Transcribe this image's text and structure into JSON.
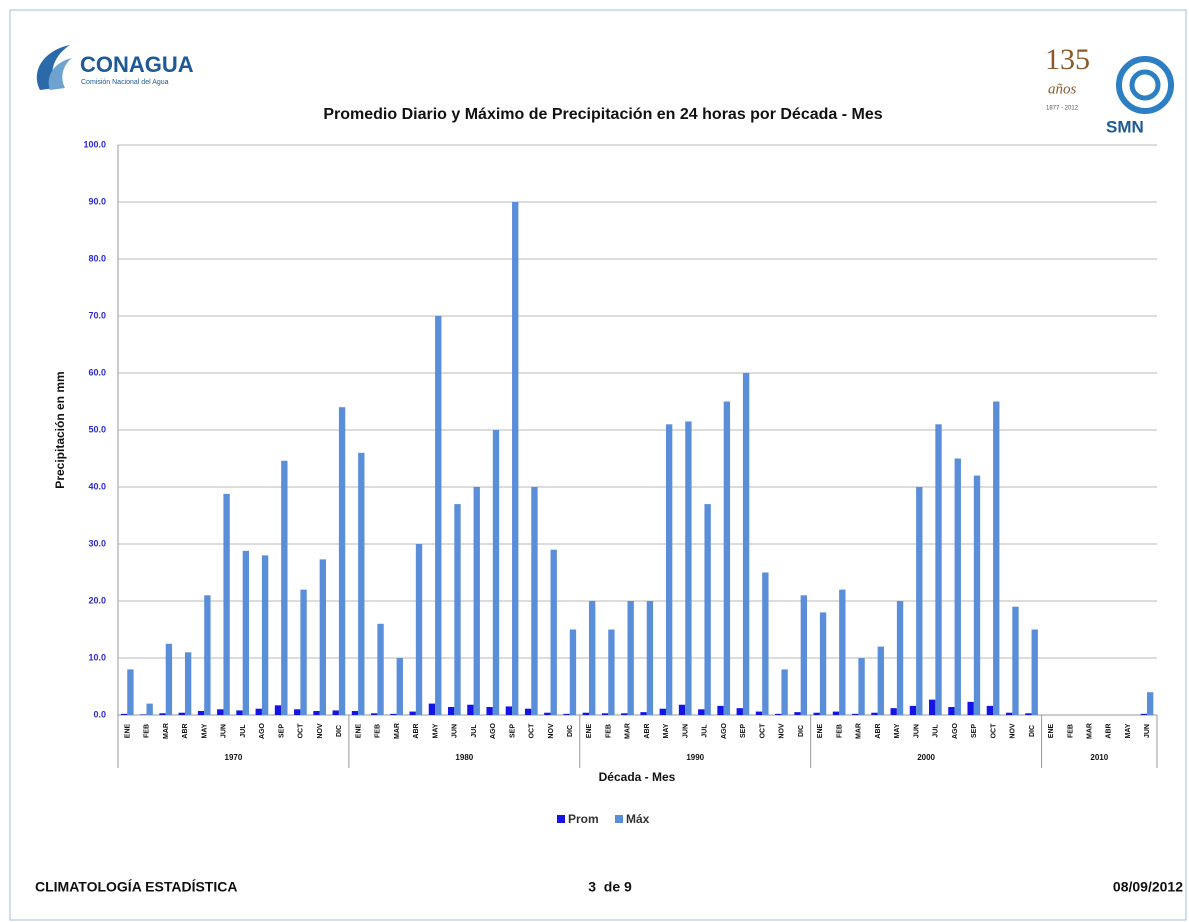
{
  "header": {
    "logo_left": {
      "name": "CONAGUA",
      "subtitle": "Comisión Nacional del Agua"
    },
    "logo_right": {
      "number": "135",
      "text": "años",
      "years": "1877 - 2012",
      "name": "SMN"
    }
  },
  "footer": {
    "left": "CLIMATOLOGÍA ESTADÍSTICA",
    "center": "3  de 9",
    "right": "08/09/2012"
  },
  "chart_data": {
    "type": "bar",
    "title": "Promedio Diario y Máximo de Precipitación en 24 horas por Década - Mes",
    "x_label": "Década - Mes",
    "y_label": "Precipitación en mm",
    "groups": [
      {
        "label": "1970",
        "categories": [
          "ENE",
          "FEB",
          "MAR",
          "ABR",
          "MAY",
          "JUN",
          "JUL",
          "AGO",
          "SEP",
          "OCT",
          "NOV",
          "DIC"
        ]
      },
      {
        "label": "1980",
        "categories": [
          "ENE",
          "FEB",
          "MAR",
          "ABR",
          "MAY",
          "JUN",
          "JUL",
          "AGO",
          "SEP",
          "OCT",
          "NOV",
          "DIC"
        ]
      },
      {
        "label": "1990",
        "categories": [
          "ENE",
          "FEB",
          "MAR",
          "ABR",
          "MAY",
          "JUN",
          "JUL",
          "AGO",
          "SEP",
          "OCT",
          "NOV",
          "DIC"
        ]
      },
      {
        "label": "2000",
        "categories": [
          "ENE",
          "FEB",
          "MAR",
          "ABR",
          "MAY",
          "JUN",
          "JUL",
          "AGO",
          "SEP",
          "OCT",
          "NOV",
          "DIC"
        ]
      },
      {
        "label": "2010",
        "categories": [
          "ENE",
          "FEB",
          "MAR",
          "ABR",
          "MAY",
          "JUN"
        ]
      }
    ],
    "series": [
      {
        "name": "Prom",
        "color": "#1414e6",
        "values": [
          0.2,
          0.1,
          0.3,
          0.4,
          0.7,
          1.0,
          0.8,
          1.1,
          1.7,
          1.0,
          0.7,
          0.8,
          0.7,
          0.3,
          0.2,
          0.6,
          2.0,
          1.4,
          1.8,
          1.4,
          1.5,
          1.1,
          0.4,
          0.2,
          0.4,
          0.3,
          0.3,
          0.5,
          1.1,
          1.8,
          1.0,
          1.6,
          1.2,
          0.6,
          0.2,
          0.5,
          0.4,
          0.6,
          0.2,
          0.4,
          1.2,
          1.6,
          2.7,
          1.4,
          2.3,
          1.6,
          0.4,
          0.3,
          0,
          0,
          0,
          0,
          0,
          0.2
        ]
      },
      {
        "name": "Máx",
        "color": "#5b8ed8",
        "values": [
          8,
          2,
          12.5,
          11,
          21,
          38.8,
          28.8,
          28,
          44.6,
          22,
          27.3,
          54,
          46,
          16,
          10,
          30,
          70,
          37,
          40,
          50,
          90,
          40,
          29,
          15,
          20,
          15,
          20,
          20,
          51,
          51.5,
          37,
          55,
          60,
          25,
          8,
          21,
          18,
          22,
          10,
          12,
          20,
          40,
          51,
          45,
          42,
          55,
          19,
          15,
          0,
          0,
          0,
          0,
          0,
          4
        ]
      }
    ],
    "ylim": [
      0,
      100
    ],
    "yticks": [
      {
        "value": 0,
        "label": "0.0"
      },
      {
        "value": 10,
        "label": "10.0"
      },
      {
        "value": 20,
        "label": "20.0"
      },
      {
        "value": 30,
        "label": "30.0"
      },
      {
        "value": 40,
        "label": "40.0"
      },
      {
        "value": 50,
        "label": "50.0"
      },
      {
        "value": 60,
        "label": "60.0"
      },
      {
        "value": 70,
        "label": "70.0"
      },
      {
        "value": 80,
        "label": "80.0"
      },
      {
        "value": 90,
        "label": "90.0"
      },
      {
        "value": 100,
        "label": "100.0"
      }
    ],
    "grid": true,
    "legend": "bottom"
  }
}
